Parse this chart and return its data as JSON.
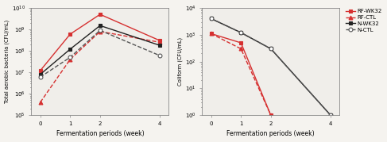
{
  "weeks": [
    0,
    1,
    2,
    4
  ],
  "bg_color": "#f0eeea",
  "left": {
    "ylabel": "Total aerobic bacteria (CFU/mL)",
    "xlabel": "Fermentation periods (week)",
    "ylim": [
      100000.0,
      10000000000.0
    ],
    "yticks": [
      100000.0,
      1000000.0,
      10000000.0,
      100000000.0,
      1000000000.0,
      10000000000.0
    ],
    "series": [
      {
        "name": "RF-WK32",
        "values": [
          12000000.0,
          600000000.0,
          5000000000.0,
          300000000.0
        ],
        "color": "#d63030",
        "linestyle": "solid",
        "marker": "s",
        "mfc_white": false
      },
      {
        "name": "RF-CTL",
        "values": [
          400000.0,
          40000000.0,
          800000000.0,
          250000000.0
        ],
        "color": "#d63030",
        "linestyle": "dashed",
        "marker": "^",
        "mfc_white": false
      },
      {
        "name": "N-WK32",
        "values": [
          8000000.0,
          120000000.0,
          1500000000.0,
          180000000.0
        ],
        "color": "#222222",
        "linestyle": "solid",
        "marker": "s",
        "mfc_white": false
      },
      {
        "name": "N-CTL",
        "values": [
          6000000.0,
          50000000.0,
          900000000.0,
          60000000.0
        ],
        "color": "#555555",
        "linestyle": "dashed",
        "marker": "o",
        "mfc_white": true
      }
    ]
  },
  "right": {
    "ylabel": "Coliform (CFU/mL)",
    "xlabel": "Fermentation periods (week)",
    "ylim": [
      1,
      10000.0
    ],
    "yticks": [
      1,
      10,
      100,
      1000,
      10000
    ],
    "series": [
      {
        "name": "RF-WK32",
        "values": [
          1100.0,
          500.0,
          1.0,
          null
        ],
        "color": "#d63030",
        "linestyle": "solid",
        "marker": "s",
        "mfc_white": false
      },
      {
        "name": "RF-CTL",
        "values": [
          1100.0,
          300.0,
          1.0,
          null
        ],
        "color": "#d63030",
        "linestyle": "dashed",
        "marker": "^",
        "mfc_white": false
      },
      {
        "name": "N-WK32",
        "values": [
          4000.0,
          1200.0,
          300.0,
          1.0
        ],
        "color": "#222222",
        "linestyle": "solid",
        "marker": "s",
        "mfc_white": false
      },
      {
        "name": "N-CTL",
        "values": [
          4000.0,
          1200.0,
          300.0,
          1.0
        ],
        "color": "#555555",
        "linestyle": "dashed",
        "marker": "o",
        "mfc_white": true
      }
    ],
    "legend_labels": [
      "RF-WK32",
      "RF-CTL",
      "N-WK32",
      "N-CTL"
    ]
  }
}
